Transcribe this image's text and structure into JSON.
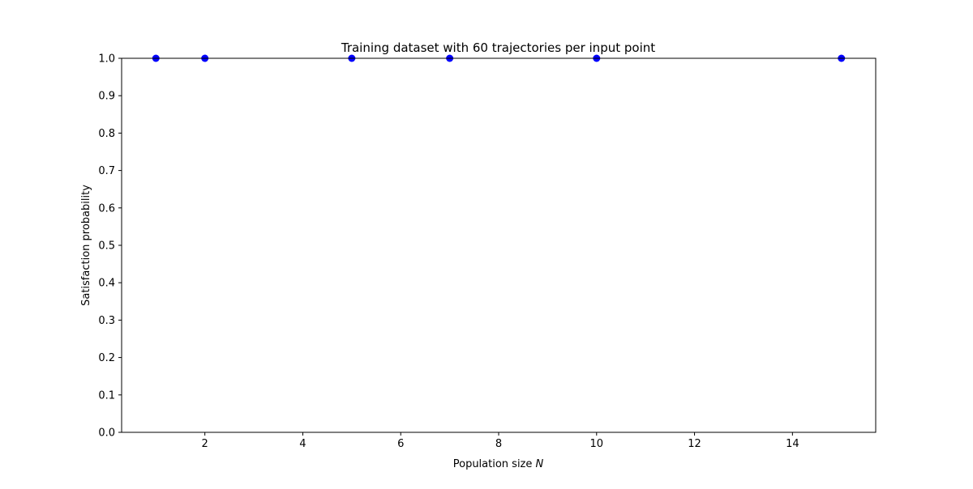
{
  "chart_data": {
    "type": "scatter",
    "title": "Training dataset with 60 trajectories per input point",
    "xlabel": "Population size",
    "xlabel_var": "N",
    "ylabel": "Satisfaction probability",
    "xlim": [
      0.3,
      15.7
    ],
    "ylim": [
      0.0,
      1.0
    ],
    "x_ticks": [
      2,
      4,
      6,
      8,
      10,
      12,
      14
    ],
    "y_ticks": [
      0.0,
      0.1,
      0.2,
      0.3,
      0.4,
      0.5,
      0.6,
      0.7,
      0.8,
      0.9,
      1.0
    ],
    "grid": false,
    "legend": "none",
    "series": [
      {
        "color": "#0000ff",
        "x": [
          1,
          2,
          5,
          7,
          10,
          15
        ],
        "y": [
          1.0,
          1.0,
          1.0,
          1.0,
          1.0,
          1.0
        ]
      }
    ]
  }
}
